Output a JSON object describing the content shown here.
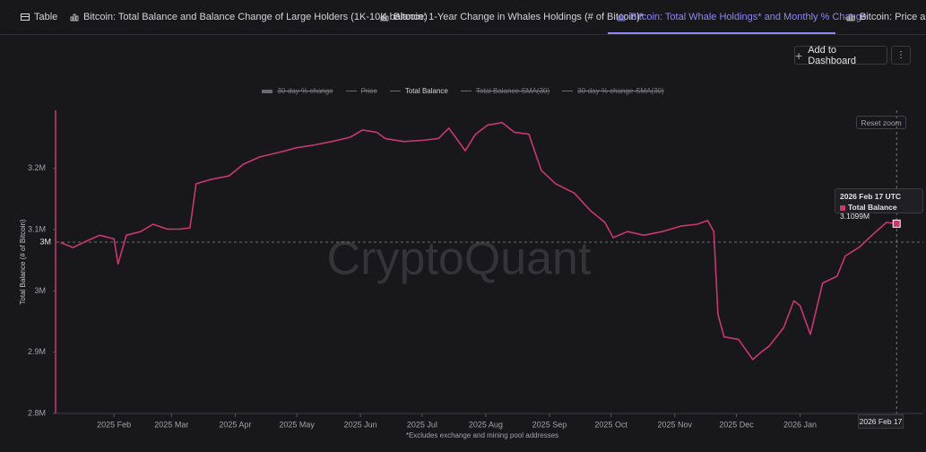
{
  "tabs": [
    {
      "label": "Table",
      "active": false
    },
    {
      "label": "Bitcoin: Total Balance and Balance Change of Large Holders (1K-10K balance)",
      "active": false
    },
    {
      "label": "Bitcoin: 1-Year Change in Whales Holdings (# of Bitcoin)*",
      "active": false
    },
    {
      "label": "Bitcoin: Total Whale Holdings* and Monthly % Change",
      "active": true
    },
    {
      "label": "Bitcoin: Price and",
      "active": false
    }
  ],
  "toolbar": {
    "add_button": "Add to Dashboard",
    "reset_zoom": "Reset zoom"
  },
  "chart_data": {
    "type": "line",
    "watermark": "CryptoQuant",
    "footnote": "*Excludes exchange and mining pool addresses",
    "y_label": "Total Balance (# of Bitcoin)",
    "legend": [
      {
        "name": "30-day % change",
        "visible": false,
        "marker": "bar"
      },
      {
        "name": "Price",
        "visible": false,
        "marker": "line"
      },
      {
        "name": "Total Balance",
        "visible": true,
        "marker": "line"
      },
      {
        "name": "Total Balance-SMA(30)",
        "visible": false,
        "marker": "line"
      },
      {
        "name": "30-day % change-SMA(30)",
        "visible": false,
        "marker": "line"
      }
    ],
    "x": [
      "2025-01-06",
      "2025-01-12",
      "2025-01-19",
      "2025-01-25",
      "2025-02-01",
      "2025-02-03",
      "2025-02-07",
      "2025-02-14",
      "2025-02-20",
      "2025-02-27",
      "2025-03-05",
      "2025-03-10",
      "2025-03-13",
      "2025-03-20",
      "2025-03-29",
      "2025-04-05",
      "2025-04-13",
      "2025-04-22",
      "2025-05-01",
      "2025-05-09",
      "2025-05-18",
      "2025-05-27",
      "2025-06-02",
      "2025-06-09",
      "2025-06-13",
      "2025-06-22",
      "2025-07-01",
      "2025-07-09",
      "2025-07-14",
      "2025-07-22",
      "2025-07-27",
      "2025-08-02",
      "2025-08-09",
      "2025-08-15",
      "2025-08-22",
      "2025-08-28",
      "2025-09-04",
      "2025-09-13",
      "2025-09-21",
      "2025-09-28",
      "2025-10-02",
      "2025-10-09",
      "2025-10-17",
      "2025-10-26",
      "2025-11-04",
      "2025-11-12",
      "2025-11-17",
      "2025-11-20",
      "2025-11-22",
      "2025-11-25",
      "2025-12-02",
      "2025-12-09",
      "2025-12-13",
      "2025-12-17",
      "2025-12-24",
      "2025-12-29",
      "2026-01-01",
      "2026-01-06",
      "2026-01-12",
      "2026-01-19",
      "2026-01-23",
      "2026-01-30",
      "2026-02-05",
      "2026-02-12",
      "2026-02-17"
    ],
    "series": [
      {
        "name": "Total Balance",
        "color": "#c8386f",
        "values": [
          3079000,
          3071000,
          3082000,
          3091000,
          3085000,
          3044000,
          3091000,
          3097000,
          3109000,
          3101000,
          3101000,
          3103000,
          3175000,
          3182000,
          3188000,
          3207000,
          3219000,
          3226000,
          3234000,
          3238000,
          3244000,
          3251000,
          3263000,
          3259000,
          3249000,
          3244000,
          3246000,
          3249000,
          3266000,
          3229000,
          3256000,
          3271000,
          3275000,
          3259000,
          3256000,
          3197000,
          3175000,
          3160000,
          3131000,
          3112000,
          3087000,
          3097000,
          3091000,
          3097000,
          3106000,
          3109000,
          3115000,
          3097000,
          2962000,
          2925000,
          2921000,
          2888000,
          2900000,
          2910000,
          2940000,
          2984000,
          2976000,
          2929000,
          3013000,
          3024000,
          3057000,
          3072000,
          3091000,
          3112000,
          3109900
        ]
      }
    ],
    "xlim": [
      "2025-01-04",
      "2026-03-02"
    ],
    "xticks": [
      {
        "value": "2025-02-01",
        "label": "2025 Feb"
      },
      {
        "value": "2025-03-01",
        "label": "2025 Mar"
      },
      {
        "value": "2025-04-01",
        "label": "2025 Apr"
      },
      {
        "value": "2025-05-01",
        "label": "2025 May"
      },
      {
        "value": "2025-06-01",
        "label": "2025 Jun"
      },
      {
        "value": "2025-07-01",
        "label": "2025 Jul"
      },
      {
        "value": "2025-08-01",
        "label": "2025 Aug"
      },
      {
        "value": "2025-09-01",
        "label": "2025 Sep"
      },
      {
        "value": "2025-10-01",
        "label": "2025 Oct"
      },
      {
        "value": "2025-11-01",
        "label": "2025 Nov"
      },
      {
        "value": "2025-12-01",
        "label": "2025 Dec"
      },
      {
        "value": "2026-01-01",
        "label": "2026 Jan"
      }
    ],
    "ylim": [
      2800000,
      3295000
    ],
    "yticks": [
      {
        "value": 2800000,
        "label": "2.8M"
      },
      {
        "value": 2900000,
        "label": "2.9M"
      },
      {
        "value": 3000000,
        "label": "3M"
      },
      {
        "value": 3100000,
        "label": "3.1M"
      },
      {
        "value": 3200000,
        "label": "3.2M"
      }
    ],
    "grid": false,
    "crosshair_y_label": "3M",
    "crosshair_x_label": "2026 Feb 17",
    "tooltip": {
      "title": "2026 Feb 17 UTC",
      "series_name": "Total Balance",
      "value_label": "3.1099M"
    }
  }
}
